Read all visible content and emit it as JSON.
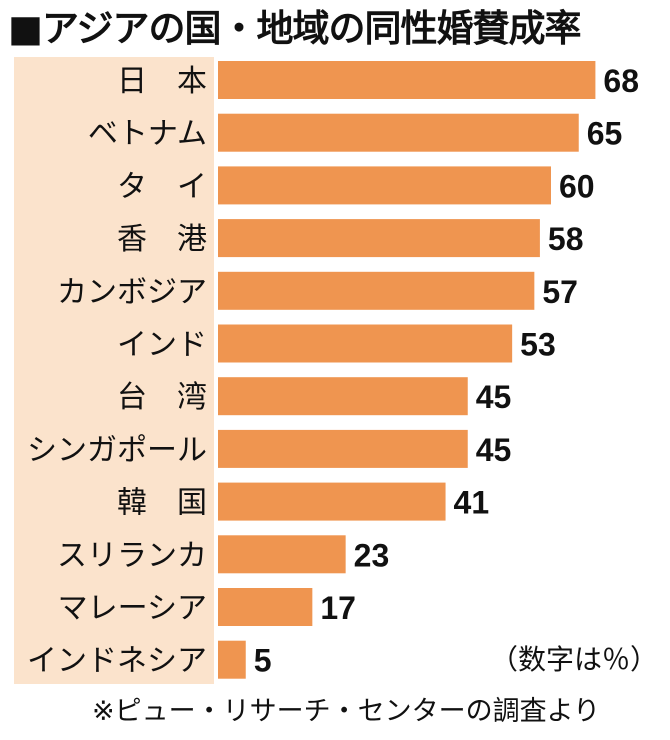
{
  "title": "■アジアの国・地域の同性婚賛成率",
  "unit_note": "（数字は％）",
  "source_note": "※ピュー・リサーチ・センターの調査より",
  "colors": {
    "bar": "#ef9550",
    "label_panel": "#fbe3cc"
  },
  "chart_data": {
    "type": "bar",
    "orientation": "horizontal",
    "title": "■アジアの国・地域の同性婚賛成率",
    "xlabel": "",
    "ylabel": "",
    "xlim": [
      0,
      100
    ],
    "grid": false,
    "legend": "none",
    "categories": [
      "日　本",
      "ベトナム",
      "タ　イ",
      "香　港",
      "カンボジア",
      "インド",
      "台　湾",
      "シンガポール",
      "韓　国",
      "スリランカ",
      "マレーシア",
      "インドネシア"
    ],
    "values": [
      68,
      65,
      60,
      58,
      57,
      53,
      45,
      45,
      41,
      23,
      17,
      5
    ]
  }
}
